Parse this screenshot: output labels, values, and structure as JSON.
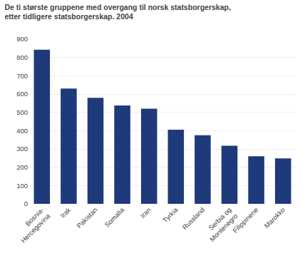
{
  "chart_data": {
    "type": "bar",
    "title": "De ti største gruppene med overgang til norsk statsborgerskap,\netter tidligere statsborgerskap. 2004",
    "categories": [
      "Bosnia-\nHercegovina",
      "Irak",
      "Pakistan",
      "Somalia",
      "Iran",
      "Tyrkia",
      "Russland",
      "Serbia og\nMontenegro",
      "Filippinene",
      "Marokko"
    ],
    "values": [
      843,
      630,
      580,
      538,
      520,
      405,
      375,
      318,
      260,
      248
    ],
    "color": "#1f3a7a",
    "ylim": [
      0,
      900
    ],
    "yticks": [
      0,
      100,
      200,
      300,
      400,
      500,
      600,
      700,
      800,
      900
    ],
    "grid": true
  }
}
